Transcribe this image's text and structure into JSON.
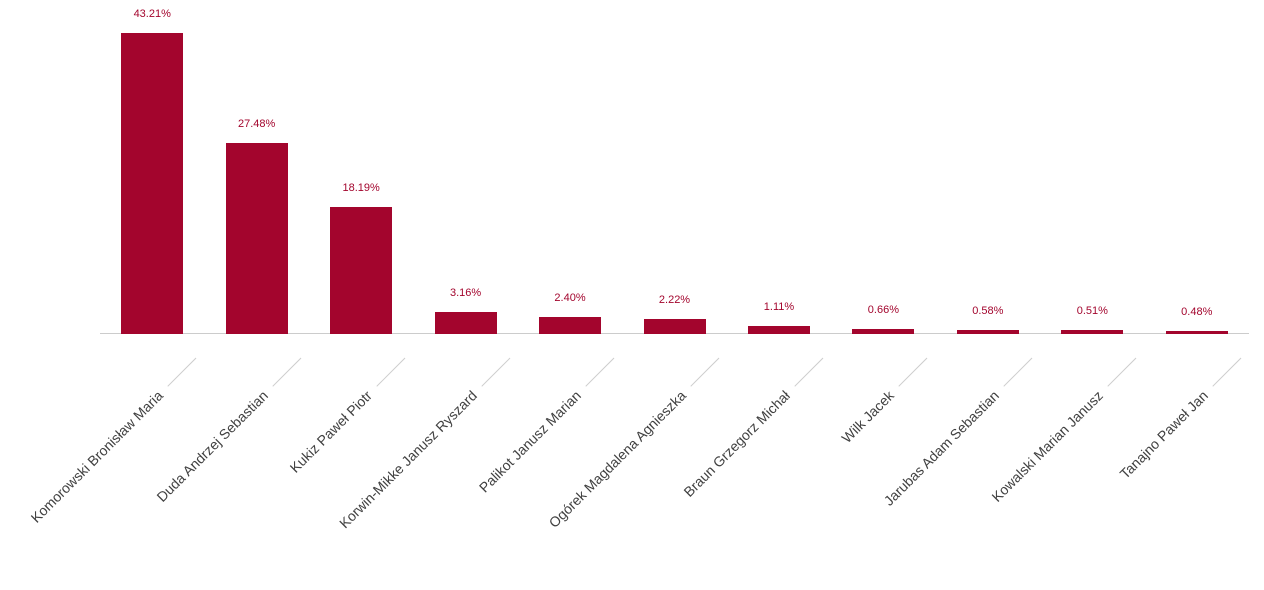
{
  "chart_data": {
    "type": "bar",
    "title": "",
    "xlabel": "",
    "ylabel": "",
    "categories": [
      "Komorowski Bronisław Maria",
      "Duda Andrzej Sebastian",
      "Kukiz Paweł Piotr",
      "Korwin-Mikke Janusz Ryszard",
      "Palikot Janusz Marian",
      "Ogórek Magdalena Agnieszka",
      "Braun Grzegorz Michał",
      "Wilk Jacek",
      "Jarubas Adam Sebastian",
      "Kowalski Marian Janusz",
      "Tanajno Paweł Jan"
    ],
    "values": [
      43.21,
      27.48,
      18.19,
      3.16,
      2.4,
      2.22,
      1.11,
      0.66,
      0.58,
      0.51,
      0.48
    ],
    "value_labels": [
      "43.21%",
      "27.48%",
      "18.19%",
      "3.16%",
      "2.40%",
      "2.22%",
      "1.11%",
      "0.66%",
      "0.58%",
      "0.51%",
      "0.48%"
    ],
    "ylim": [
      0,
      48
    ],
    "grid": false,
    "legend": false,
    "y_axis_visible": false,
    "bar_color": "#A3052D",
    "value_label_color": "#A3052D",
    "axis_line_color": "#CCCCCC",
    "tick_line_color": "#CDCDCD",
    "category_label_color": "#404040",
    "background": "#FFFFFF"
  }
}
